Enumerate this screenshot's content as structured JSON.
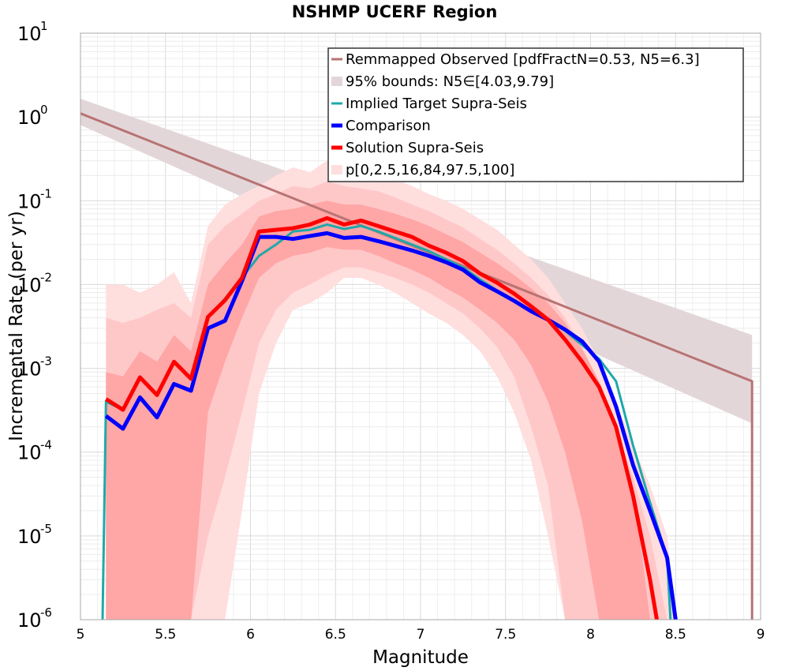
{
  "chart_data": {
    "type": "line",
    "title": "NSHMP UCERF Region",
    "xlabel": "Magnitude",
    "ylabel": "Incremental Rate (per yr)",
    "xlim": [
      5,
      9
    ],
    "ylim": [
      1e-06,
      10
    ],
    "yscale": "log",
    "grid": true,
    "legend_position": "top-right",
    "x_ticks": [
      5,
      5.5,
      6,
      6.5,
      7,
      7.5,
      8,
      8.5,
      9
    ],
    "x_tick_labels": [
      "5",
      "5.5",
      "6",
      "6.5",
      "7",
      "7.5",
      "8",
      "8.5",
      "9"
    ],
    "y_ticks": [
      {
        "value": 1e-06,
        "base": "10",
        "exp": "-6"
      },
      {
        "value": 1e-05,
        "base": "10",
        "exp": "-5"
      },
      {
        "value": 0.0001,
        "base": "10",
        "exp": "-4"
      },
      {
        "value": 0.001,
        "base": "10",
        "exp": "-3"
      },
      {
        "value": 0.01,
        "base": "10",
        "exp": "-2"
      },
      {
        "value": 0.1,
        "base": "10",
        "exp": "-1"
      },
      {
        "value": 1,
        "base": "10",
        "exp": "0"
      },
      {
        "value": 10,
        "base": "10",
        "exp": "1"
      }
    ],
    "legend": [
      {
        "label": "Remmapped Observed [pdfFractN=0.53, N5=6.3]",
        "color": "#b87373",
        "style": "line",
        "width": 3
      },
      {
        "label": "95% bounds: N5∈[4.03,9.79]",
        "color": "#e3d6d9",
        "style": "band",
        "width": 12
      },
      {
        "label": "Implied Target Supra-Seis",
        "color": "#20a8a8",
        "style": "line",
        "width": 3
      },
      {
        "label": "Comparison",
        "color": "#0000ff",
        "style": "line",
        "width": 5
      },
      {
        "label": "Solution Supra-Seis",
        "color": "#ff0000",
        "style": "line",
        "width": 5
      },
      {
        "label": "p[0,2.5,16,84,97.5,100]",
        "color": "#ffdede",
        "style": "band",
        "width": 12
      }
    ],
    "series": [
      {
        "name": "Remmapped Observed [pdfFractN=0.53, N5=6.3]",
        "color": "#b87373",
        "width": 3,
        "x": [
          5.0,
          8.95,
          8.95
        ],
        "y": [
          1.1,
          0.0007,
          1e-06
        ]
      },
      {
        "name": "Implied Target Supra-Seis",
        "color": "#20a8a8",
        "width": 3,
        "x": [
          5.13,
          5.15,
          5.25,
          5.35,
          5.45,
          5.55,
          5.65,
          5.75,
          5.85,
          5.95,
          6.05,
          6.15,
          6.25,
          6.35,
          6.45,
          6.55,
          6.65,
          6.75,
          6.85,
          6.95,
          7.05,
          7.15,
          7.25,
          7.35,
          7.45,
          7.55,
          7.65,
          7.75,
          7.85,
          7.95,
          8.05,
          8.15,
          8.25,
          8.35,
          8.45,
          8.47,
          8.47
        ],
        "y": [
          1e-06,
          0.0004,
          0.00032,
          0.0008,
          0.00048,
          0.0012,
          0.00075,
          0.004,
          0.0068,
          0.012,
          0.022,
          0.03,
          0.043,
          0.045,
          0.052,
          0.046,
          0.05,
          0.043,
          0.036,
          0.03,
          0.025,
          0.02,
          0.016,
          0.0115,
          0.0085,
          0.0065,
          0.0048,
          0.0038,
          0.0028,
          0.0019,
          0.0013,
          0.0007,
          0.00012,
          2.5e-05,
          5.5e-06,
          1e-06,
          1e-06
        ]
      },
      {
        "name": "Comparison",
        "color": "#0000ff",
        "width": 5,
        "x": [
          5.15,
          5.25,
          5.35,
          5.45,
          5.55,
          5.65,
          5.75,
          5.85,
          5.95,
          6.05,
          6.15,
          6.25,
          6.35,
          6.45,
          6.55,
          6.65,
          6.75,
          6.85,
          6.95,
          7.05,
          7.15,
          7.25,
          7.35,
          7.45,
          7.55,
          7.65,
          7.75,
          7.85,
          7.95,
          8.05,
          8.15,
          8.25,
          8.35,
          8.45,
          8.5
        ],
        "y": [
          0.00027,
          0.00019,
          0.00045,
          0.00026,
          0.00065,
          0.00054,
          0.003,
          0.0037,
          0.011,
          0.037,
          0.037,
          0.035,
          0.038,
          0.041,
          0.036,
          0.037,
          0.033,
          0.029,
          0.0255,
          0.022,
          0.0185,
          0.015,
          0.0106,
          0.0083,
          0.0064,
          0.0048,
          0.0038,
          0.0029,
          0.0021,
          0.0012,
          0.00035,
          7e-05,
          2e-05,
          5.5e-06,
          1e-06
        ]
      },
      {
        "name": "Solution Supra-Seis",
        "color": "#ff0000",
        "width": 5,
        "x": [
          5.15,
          5.25,
          5.35,
          5.45,
          5.55,
          5.65,
          5.75,
          5.85,
          5.95,
          6.05,
          6.15,
          6.25,
          6.35,
          6.45,
          6.55,
          6.65,
          6.75,
          6.85,
          6.95,
          7.05,
          7.15,
          7.25,
          7.35,
          7.45,
          7.55,
          7.65,
          7.75,
          7.85,
          7.95,
          8.05,
          8.15,
          8.25,
          8.35,
          8.39
        ],
        "y": [
          0.00043,
          0.00032,
          0.00078,
          0.00048,
          0.0012,
          0.00075,
          0.0041,
          0.0065,
          0.012,
          0.043,
          0.045,
          0.047,
          0.052,
          0.062,
          0.052,
          0.058,
          0.05,
          0.043,
          0.037,
          0.029,
          0.024,
          0.019,
          0.0135,
          0.0105,
          0.0078,
          0.0055,
          0.0038,
          0.0022,
          0.0012,
          0.0006,
          0.0002,
          3e-05,
          3e-06,
          1e-06
        ]
      }
    ],
    "bands": [
      {
        "name": "95% bounds: N5∈[4.03,9.79]",
        "color": "#e3d6d9",
        "x": [
          5.0,
          8.95
        ],
        "lower": [
          0.8,
          0.00022
        ],
        "upper": [
          1.65,
          0.0025
        ]
      },
      {
        "name": "p0-p100",
        "color": "#ffdede",
        "x": [
          5.15,
          5.25,
          5.35,
          5.45,
          5.55,
          5.65,
          5.75,
          5.85,
          5.95,
          6.05,
          6.15,
          6.25,
          6.35,
          6.45,
          6.55,
          6.65,
          6.75,
          6.85,
          6.95,
          7.05,
          7.15,
          7.25,
          7.35,
          7.45,
          7.55,
          7.65,
          7.75,
          7.85,
          7.95,
          8.05,
          8.15,
          8.25,
          8.35,
          8.45,
          8.5
        ],
        "lower": [
          1e-06,
          1e-06,
          1e-06,
          1e-06,
          1e-06,
          1e-06,
          1e-06,
          1e-06,
          2e-05,
          0.0005,
          0.002,
          0.005,
          0.006,
          0.008,
          0.012,
          0.012,
          0.01,
          0.008,
          0.006,
          0.0045,
          0.0035,
          0.0025,
          0.0016,
          0.0008,
          0.0003,
          8e-05,
          1e-05,
          1e-06,
          1e-06,
          1e-06,
          1e-06,
          1e-06,
          1e-06,
          1e-06,
          1e-06
        ],
        "upper": [
          0.01,
          0.01,
          0.008,
          0.01,
          0.014,
          0.006,
          0.05,
          0.09,
          0.12,
          0.15,
          0.2,
          0.25,
          0.22,
          0.3,
          0.25,
          0.22,
          0.22,
          0.18,
          0.15,
          0.12,
          0.1,
          0.08,
          0.06,
          0.045,
          0.03,
          0.02,
          0.012,
          0.006,
          0.003,
          0.0012,
          0.0004,
          0.00012,
          4e-05,
          1e-05,
          1e-06
        ]
      },
      {
        "name": "p2.5-p97.5",
        "color": "#ffc8c8",
        "x": [
          5.15,
          5.25,
          5.35,
          5.45,
          5.55,
          5.65,
          5.75,
          5.85,
          5.95,
          6.05,
          6.15,
          6.25,
          6.35,
          6.45,
          6.55,
          6.65,
          6.75,
          6.85,
          6.95,
          7.05,
          7.15,
          7.25,
          7.35,
          7.45,
          7.55,
          7.65,
          7.75,
          7.85,
          7.95,
          8.05,
          8.15,
          8.25,
          8.35,
          8.45
        ],
        "lower": [
          1e-06,
          1e-06,
          1e-06,
          1e-06,
          1e-06,
          1e-06,
          1e-05,
          5e-05,
          0.0003,
          0.002,
          0.005,
          0.008,
          0.01,
          0.013,
          0.016,
          0.016,
          0.014,
          0.012,
          0.01,
          0.008,
          0.006,
          0.0045,
          0.003,
          0.0018,
          0.0008,
          0.0002,
          4e-05,
          1e-06,
          1e-06,
          1e-06,
          1e-06,
          1e-06,
          1e-06,
          1e-06
        ],
        "upper": [
          0.004,
          0.0035,
          0.004,
          0.005,
          0.006,
          0.004,
          0.03,
          0.05,
          0.07,
          0.1,
          0.12,
          0.15,
          0.14,
          0.17,
          0.15,
          0.14,
          0.13,
          0.11,
          0.09,
          0.075,
          0.06,
          0.048,
          0.035,
          0.026,
          0.018,
          0.012,
          0.0075,
          0.004,
          0.0018,
          0.0007,
          0.0002,
          5e-05,
          1e-05,
          1e-06
        ]
      },
      {
        "name": "p16-p84",
        "color": "#ffa6a6",
        "x": [
          5.15,
          5.25,
          5.35,
          5.45,
          5.55,
          5.65,
          5.75,
          5.85,
          5.95,
          6.05,
          6.15,
          6.25,
          6.35,
          6.45,
          6.55,
          6.65,
          6.75,
          6.85,
          6.95,
          7.05,
          7.15,
          7.25,
          7.35,
          7.45,
          7.55,
          7.65,
          7.75,
          7.85,
          7.95,
          8.05,
          8.15,
          8.25,
          8.35
        ],
        "lower": [
          1e-06,
          1e-06,
          1e-06,
          1e-06,
          1e-06,
          1e-06,
          0.0003,
          0.0012,
          0.004,
          0.012,
          0.018,
          0.022,
          0.024,
          0.028,
          0.026,
          0.026,
          0.022,
          0.018,
          0.015,
          0.012,
          0.009,
          0.007,
          0.005,
          0.0035,
          0.0022,
          0.0011,
          0.0004,
          0.0001,
          1.5e-05,
          1e-06,
          1e-06,
          1e-06,
          1e-06
        ],
        "upper": [
          0.0009,
          0.0008,
          0.0016,
          0.0012,
          0.0025,
          0.0016,
          0.01,
          0.018,
          0.03,
          0.065,
          0.075,
          0.08,
          0.09,
          0.1,
          0.09,
          0.09,
          0.08,
          0.07,
          0.06,
          0.05,
          0.04,
          0.032,
          0.024,
          0.018,
          0.013,
          0.009,
          0.006,
          0.0035,
          0.0017,
          0.0007,
          0.0002,
          4e-05,
          1e-06
        ]
      }
    ]
  }
}
